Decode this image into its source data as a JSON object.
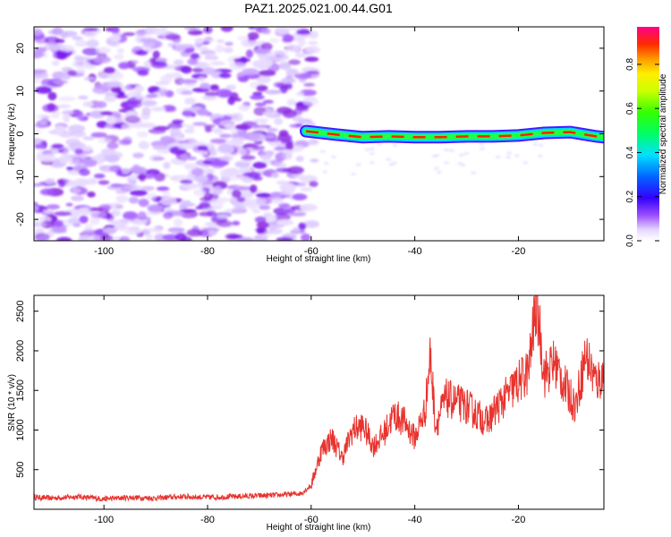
{
  "title": "PAZ1.2025.021.00.44.G01",
  "colorbar": {
    "label": "Normalized spectral amplitude",
    "ticks": [
      "0.0",
      "0.2",
      "0.4",
      "0.6",
      "0.8"
    ],
    "range": [
      0,
      0.97
    ]
  },
  "chart_data": [
    {
      "type": "heatmap",
      "xlabel": "Height of straight line (km)",
      "ylabel": "Frequency (Hz)",
      "xlim": [
        -113.5,
        -3.5
      ],
      "ylim": [
        -25,
        25
      ],
      "xticks": [
        -100,
        -80,
        -60,
        -40,
        -20
      ],
      "yticks": [
        -20,
        -10,
        0,
        10,
        20
      ],
      "noise_region_x": [
        -113.5,
        -60
      ],
      "noise_amplitude_range": [
        0.0,
        0.15
      ],
      "signal_line_x": [
        -61,
        -3.5
      ],
      "signal_frequency_hz": [
        [
          -61,
          0.6
        ],
        [
          -55,
          -0.2
        ],
        [
          -50,
          -0.8
        ],
        [
          -45,
          -0.6
        ],
        [
          -40,
          -0.8
        ],
        [
          -35,
          -0.8
        ],
        [
          -30,
          -0.6
        ],
        [
          -25,
          -0.6
        ],
        [
          -20,
          -0.4
        ],
        [
          -15,
          0.2
        ],
        [
          -10,
          0.4
        ],
        [
          -5,
          -0.6
        ],
        [
          -3.5,
          -0.8
        ]
      ],
      "signal_peak_amplitude": 0.95
    },
    {
      "type": "line",
      "xlabel": "Height of straight line (km)",
      "ylabel": "SNR (10 * v/v)",
      "xlim": [
        -113.5,
        -3.5
      ],
      "ylim": [
        0,
        2700
      ],
      "xticks": [
        -100,
        -80,
        -60,
        -40,
        -20
      ],
      "yticks": [
        500,
        1000,
        1500,
        2000,
        2500
      ],
      "color": "#e8332e",
      "series": [
        {
          "x": [
            -113.5,
            -110,
            -105,
            -100,
            -95,
            -90,
            -85,
            -80,
            -75,
            -70,
            -66,
            -62,
            -60,
            -58,
            -56,
            -54,
            -52,
            -50,
            -48,
            -46,
            -44,
            -42,
            -40,
            -38,
            -37,
            -36,
            -34,
            -32,
            -30,
            -28,
            -26,
            -24,
            -22,
            -20,
            -18,
            -16.5,
            -15,
            -13,
            -11,
            -9,
            -7,
            -5,
            -3.5
          ],
          "values": [
            150,
            140,
            160,
            130,
            150,
            140,
            160,
            150,
            160,
            170,
            180,
            200,
            300,
            750,
            900,
            650,
            1000,
            1050,
            800,
            950,
            1200,
            1100,
            900,
            1250,
            1950,
            1050,
            1400,
            1350,
            1300,
            1200,
            1100,
            1300,
            1450,
            1600,
            1750,
            2650,
            1700,
            1850,
            1550,
            1300,
            1950,
            1600,
            1700
          ]
        }
      ]
    }
  ]
}
